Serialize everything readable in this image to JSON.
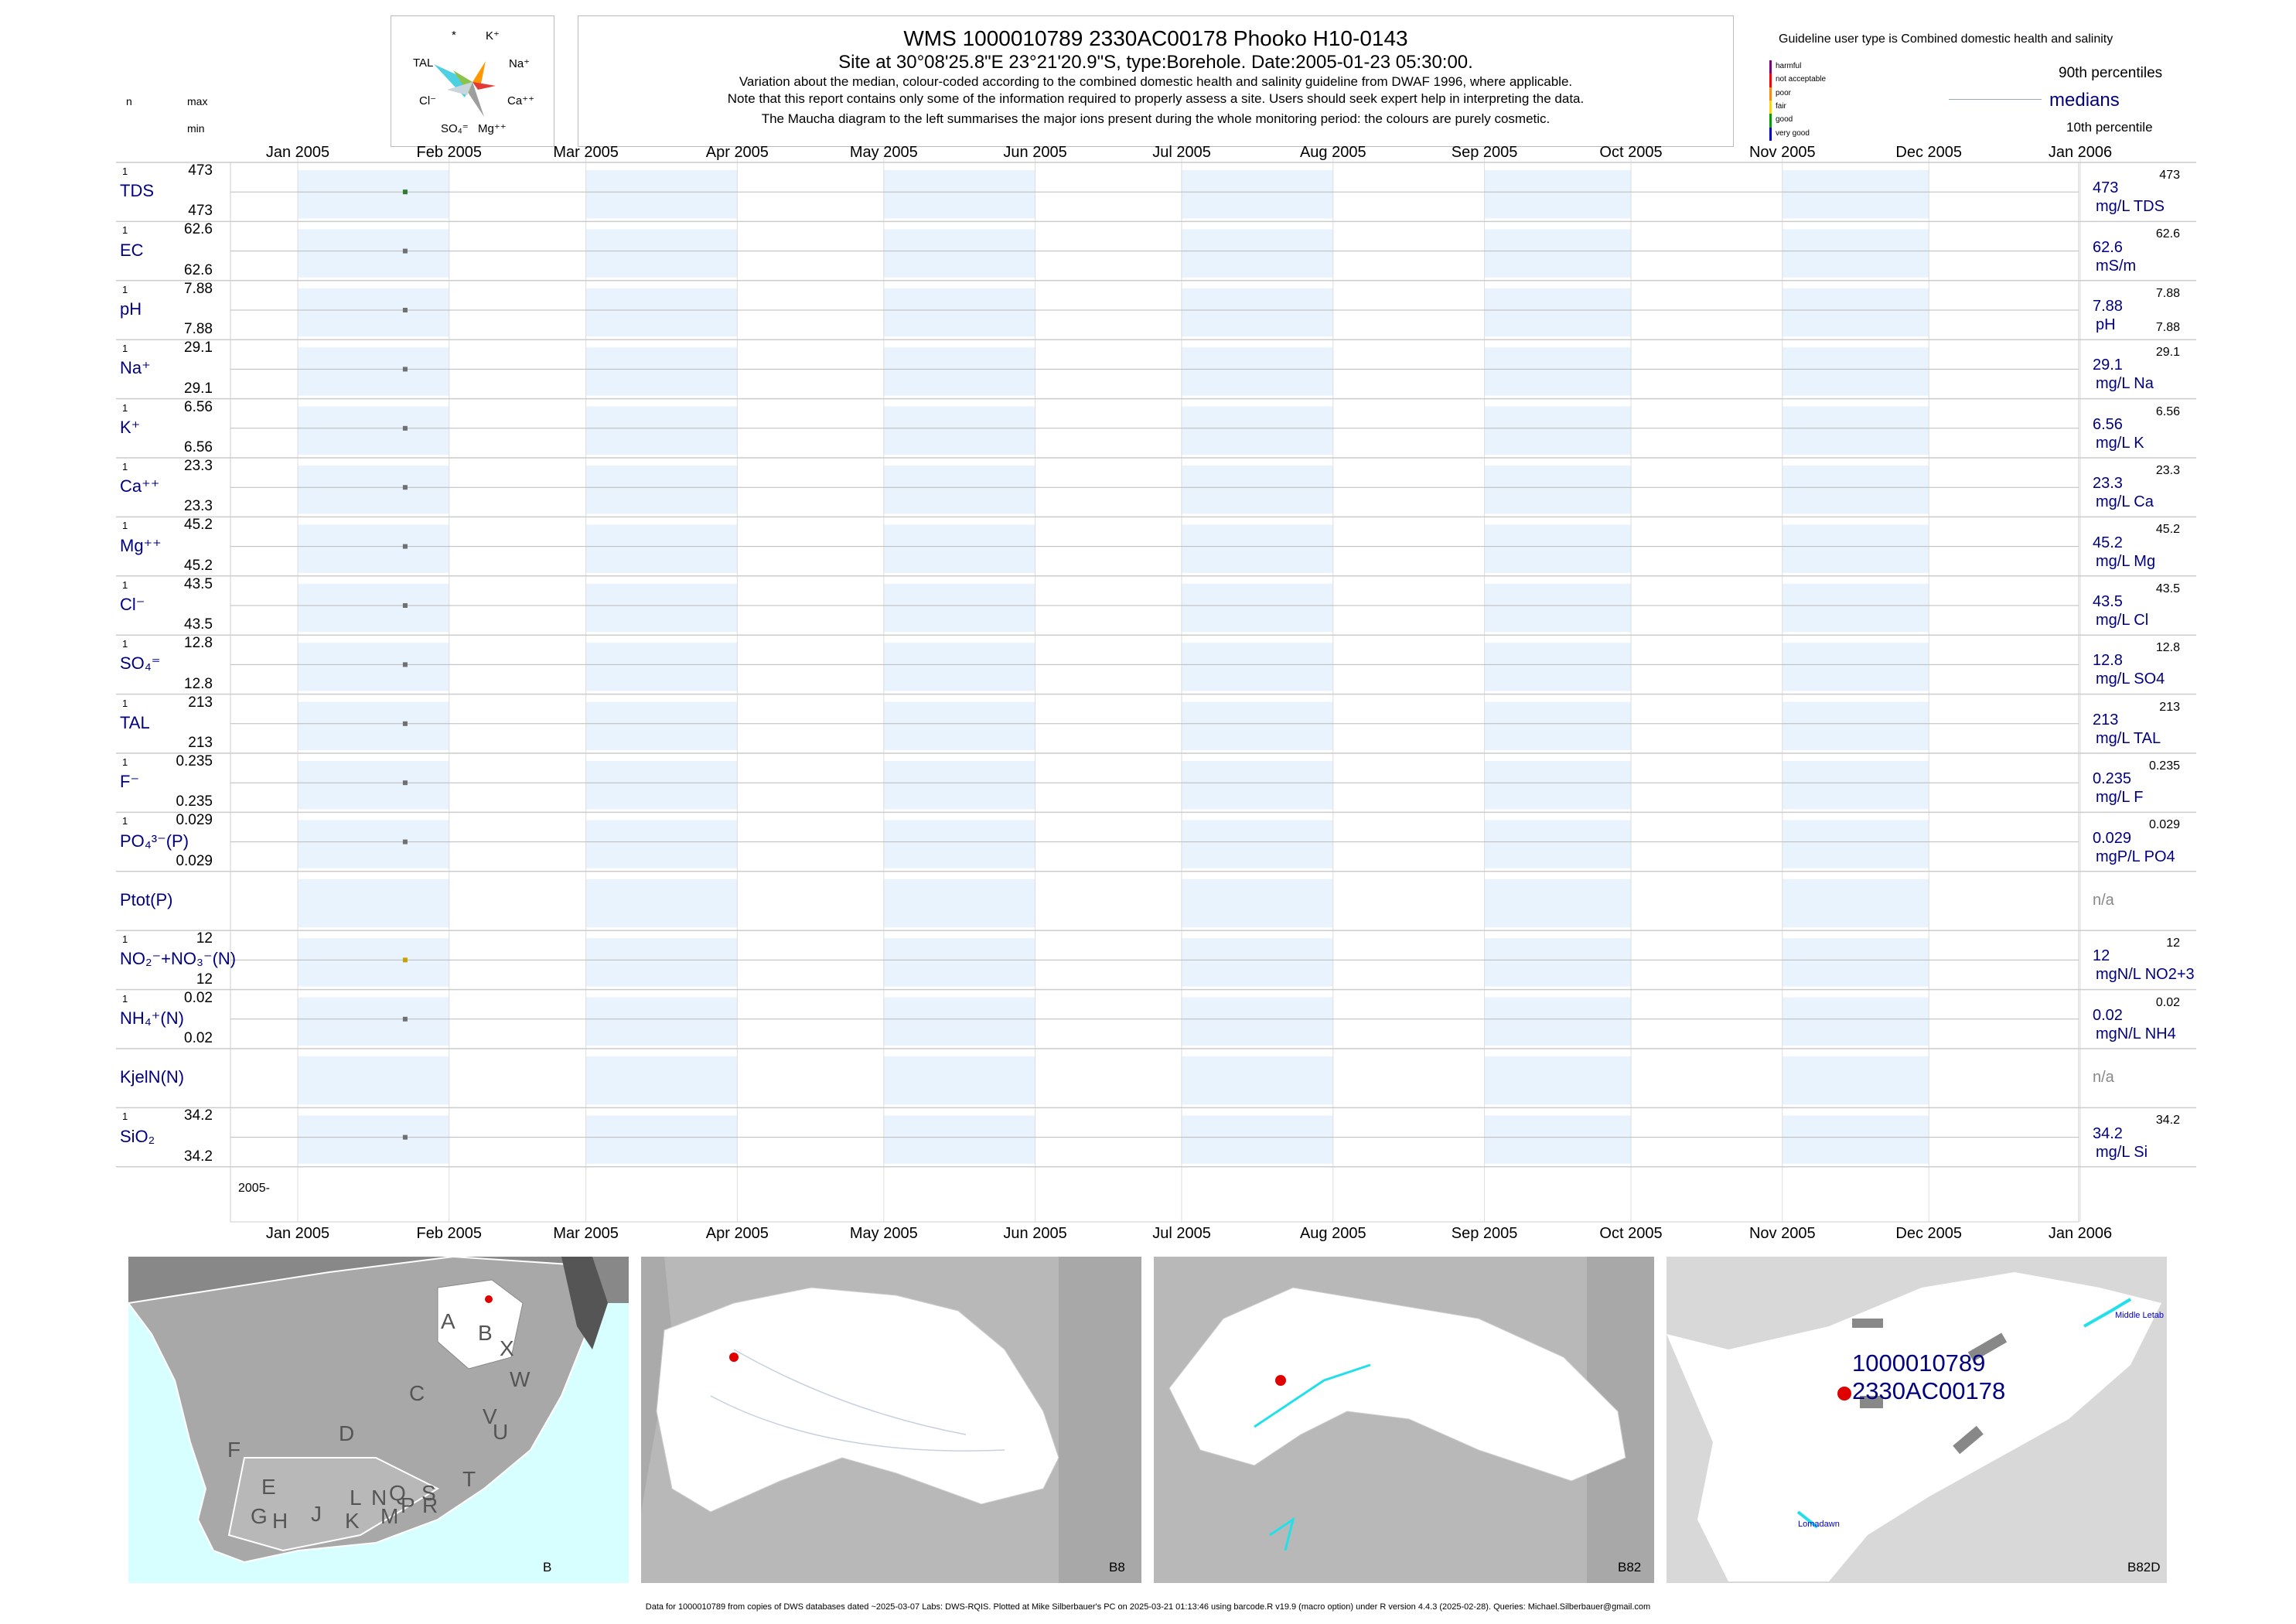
{
  "header": {
    "title": "WMS 1000010789 2330AC00178 Phooko H10-0143",
    "subtitle": "Site at 30°08'25.8\"E 23°21'20.9\"S, type:Borehole. Date:2005-01-23 05:30:00.",
    "note1": "Variation about the median,  colour-coded according to the combined domestic health and salinity guideline from DWAF 1996, where applicable.",
    "note2": "Note that this report contains only some of the information required to properly assess a site. Users should seek expert help in interpreting the data.",
    "note3": "The Maucha diagram to the left summarises the major ions present during the whole monitoring period: the colours are purely cosmetic."
  },
  "maucha": {
    "labels": [
      "*",
      "K⁺",
      "TAL",
      "Na⁺",
      "Cl⁻",
      "Ca⁺⁺",
      "SO₄⁼",
      "Mg⁺⁺"
    ],
    "colors": {
      "TAL": "#4dd0e1",
      "K": "#8bc34a",
      "Na": "#ff9800",
      "Ca": "#e53935",
      "Mg": "#9e9e9e",
      "SO4": "#c0c0c0",
      "Cl": "#b0bec5"
    }
  },
  "legend": {
    "title": "Guideline user type is Combined domestic health and salinity",
    "levels": [
      "harmful",
      "not acceptable",
      "poor",
      "fair",
      "good",
      "very good"
    ],
    "level_colors": [
      "#800080",
      "#ff0000",
      "#ff8c00",
      "#ffd700",
      "#00a000",
      "#0000cd"
    ],
    "p90": "90th percentiles",
    "medians": "medians",
    "p10": "10th percentile"
  },
  "left_header": {
    "n": "n",
    "max": "max",
    "min": "min"
  },
  "x_axis": {
    "months": [
      "Jan 2005",
      "Feb 2005",
      "Mar 2005",
      "Apr 2005",
      "May 2005",
      "Jun 2005",
      "Jul 2005",
      "Aug 2005",
      "Sep 2005",
      "Oct 2005",
      "Nov 2005",
      "Dec 2005",
      "Jan 2006"
    ],
    "year_label": "2005-"
  },
  "chart_data": {
    "type": "scatter",
    "x_range": [
      "2005-01-01",
      "2006-01-01"
    ],
    "sample_date": "2005-01-23",
    "rows": [
      {
        "label": "TDS",
        "n": "1",
        "max": "473",
        "min": "473",
        "median": "473",
        "unit": "mg/L TDS",
        "p90": "473",
        "p10": "",
        "value": 473,
        "color": "#2e7d32"
      },
      {
        "label": "EC",
        "n": "1",
        "max": "62.6",
        "min": "62.6",
        "median": "62.6",
        "unit": "mS/m",
        "p90": "62.6",
        "p10": "",
        "value": 62.6,
        "color": "#707070"
      },
      {
        "label": "pH",
        "n": "1",
        "max": "7.88",
        "min": "7.88",
        "median": "7.88",
        "unit": "pH",
        "p90": "7.88",
        "p10": "7.88",
        "value": 7.88,
        "color": "#707070"
      },
      {
        "label": "Na⁺",
        "n": "1",
        "max": "29.1",
        "min": "29.1",
        "median": "29.1",
        "unit": "mg/L Na",
        "p90": "29.1",
        "p10": "",
        "value": 29.1,
        "color": "#707070"
      },
      {
        "label": "K⁺",
        "n": "1",
        "max": "6.56",
        "min": "6.56",
        "median": "6.56",
        "unit": "mg/L K",
        "p90": "6.56",
        "p10": "",
        "value": 6.56,
        "color": "#707070"
      },
      {
        "label": "Ca⁺⁺",
        "n": "1",
        "max": "23.3",
        "min": "23.3",
        "median": "23.3",
        "unit": "mg/L Ca",
        "p90": "23.3",
        "p10": "",
        "value": 23.3,
        "color": "#707070"
      },
      {
        "label": "Mg⁺⁺",
        "n": "1",
        "max": "45.2",
        "min": "45.2",
        "median": "45.2",
        "unit": "mg/L Mg",
        "p90": "45.2",
        "p10": "",
        "value": 45.2,
        "color": "#707070"
      },
      {
        "label": "Cl⁻",
        "n": "1",
        "max": "43.5",
        "min": "43.5",
        "median": "43.5",
        "unit": "mg/L Cl",
        "p90": "43.5",
        "p10": "",
        "value": 43.5,
        "color": "#707070"
      },
      {
        "label": "SO₄⁼",
        "n": "1",
        "max": "12.8",
        "min": "12.8",
        "median": "12.8",
        "unit": "mg/L SO4",
        "p90": "12.8",
        "p10": "",
        "value": 12.8,
        "color": "#707070"
      },
      {
        "label": "TAL",
        "n": "1",
        "max": "213",
        "min": "213",
        "median": "213",
        "unit": "mg/L TAL",
        "p90": "213",
        "p10": "",
        "value": 213,
        "color": "#707070"
      },
      {
        "label": "F⁻",
        "n": "1",
        "max": "0.235",
        "min": "0.235",
        "median": "0.235",
        "unit": "mg/L F",
        "p90": "0.235",
        "p10": "",
        "value": 0.235,
        "color": "#707070"
      },
      {
        "label": "PO₄³⁻(P)",
        "n": "1",
        "max": "0.029",
        "min": "0.029",
        "median": "0.029",
        "unit": "mgP/L PO4",
        "p90": "0.029",
        "p10": "",
        "value": 0.029,
        "color": "#707070"
      },
      {
        "label": "Ptot(P)",
        "n": "",
        "max": "",
        "min": "",
        "median": "n/a",
        "unit": "",
        "p90": "",
        "p10": "",
        "value": null,
        "color": "#707070"
      },
      {
        "label": "NO₂⁻+NO₃⁻(N)",
        "n": "1",
        "max": "12",
        "min": "12",
        "median": "12",
        "unit": "mgN/L NO2+3",
        "p90": "12",
        "p10": "",
        "value": 12,
        "color": "#c8a000"
      },
      {
        "label": "NH₄⁺(N)",
        "n": "1",
        "max": "0.02",
        "min": "0.02",
        "median": "0.02",
        "unit": "mgN/L NH4",
        "p90": "0.02",
        "p10": "",
        "value": 0.02,
        "color": "#707070"
      },
      {
        "label": "KjelN(N)",
        "n": "",
        "max": "",
        "min": "",
        "median": "n/a",
        "unit": "",
        "p90": "",
        "p10": "",
        "value": null,
        "color": "#707070"
      },
      {
        "label": "SiO₂",
        "n": "1",
        "max": "34.2",
        "min": "34.2",
        "median": "34.2",
        "unit": "mg/L Si",
        "p90": "34.2",
        "p10": "",
        "value": 34.2,
        "color": "#707070"
      }
    ]
  },
  "maps": [
    {
      "corner_label": "B",
      "letters": [
        "A",
        "B",
        "X",
        "W",
        "C",
        "V",
        "U",
        "D",
        "T",
        "F",
        "E",
        "L",
        "N",
        "Q",
        "S",
        "G",
        "H",
        "J",
        "K",
        "M",
        "P",
        "R"
      ]
    },
    {
      "corner_label": "B8"
    },
    {
      "corner_label": "B82"
    },
    {
      "corner_label": "B82D",
      "site_line1": "1000010789",
      "site_line2": "2330AC00178",
      "place1": "Middle Letab",
      "place2": "Lomadawn"
    }
  ],
  "footer": "Data for 1000010789 from copies of DWS databases dated ~2025-03-07 Labs: DWS-RQIS. Plotted at Mike Silberbauer's PC on 2025-03-21 01:13:46 using barcode.R v19.9 (macro option) under R version 4.4.3 (2025-02-28). Queries: Michael.Silberbauer@gmail.com"
}
